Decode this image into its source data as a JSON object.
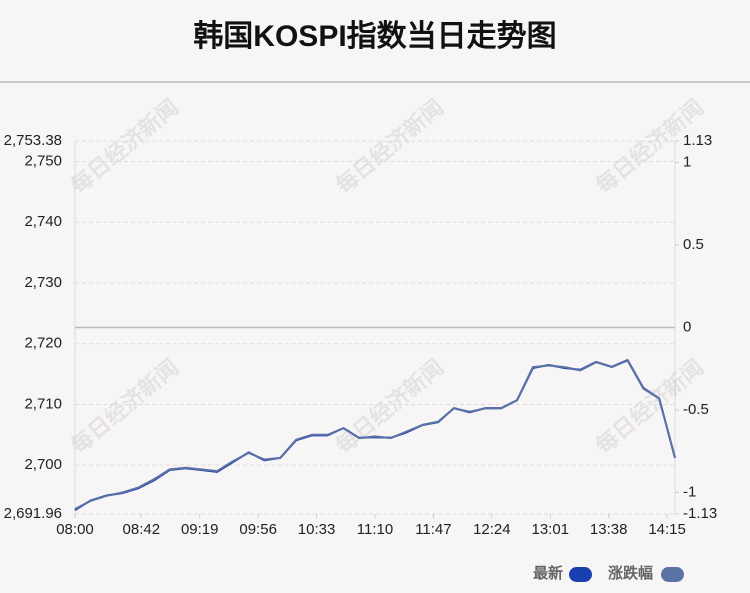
{
  "chart_data": {
    "type": "line",
    "title": "韩国KOSPI指数当日走势图",
    "watermark": "每日经济新闻",
    "x": [
      "08:00",
      "08:10",
      "08:20",
      "08:30",
      "08:40",
      "08:50",
      "09:00",
      "09:10",
      "09:20",
      "09:30",
      "09:40",
      "09:50",
      "10:00",
      "10:10",
      "10:20",
      "10:30",
      "10:40",
      "10:50",
      "11:00",
      "11:10",
      "11:20",
      "11:30",
      "11:40",
      "11:50",
      "12:00",
      "12:10",
      "12:20",
      "12:30",
      "12:40",
      "12:50",
      "13:00",
      "13:10",
      "13:20",
      "13:30",
      "13:40",
      "13:50",
      "14:00",
      "14:10",
      "14:20"
    ],
    "xlim": [
      "08:00",
      "14:20"
    ],
    "xticks": [
      "08:00",
      "08:42",
      "09:19",
      "09:56",
      "10:33",
      "11:10",
      "11:47",
      "12:24",
      "13:01",
      "13:38",
      "14:15"
    ],
    "series": [
      {
        "name": "最新",
        "color": "#1a3fb0",
        "values": [
          2692.6,
          2694.2,
          2695.0,
          2695.4,
          2696.2,
          2697.5,
          2699.2,
          2699.5,
          2699.2,
          2698.9,
          2700.5,
          2702.1,
          2700.8,
          2701.2,
          2704.1,
          2704.9,
          2704.9,
          2706.1,
          2704.5,
          2704.6,
          2704.5,
          2705.4,
          2706.6,
          2707.1,
          2709.4,
          2708.7,
          2709.4,
          2709.4,
          2710.7,
          2716.0,
          2716.5,
          2716.0,
          2715.7,
          2717.0,
          2716.2,
          2717.3,
          2712.7,
          2711.0,
          2701.2
        ]
      },
      {
        "name": "涨跌幅",
        "color": "#5a72a4",
        "axis": "y2",
        "values": [
          -1.1,
          -1.05,
          -1.02,
          -1.0,
          -0.97,
          -0.92,
          -0.86,
          -0.85,
          -0.86,
          -0.87,
          -0.81,
          -0.76,
          -0.8,
          -0.79,
          -0.68,
          -0.65,
          -0.65,
          -0.61,
          -0.67,
          -0.66,
          -0.67,
          -0.63,
          -0.59,
          -0.57,
          -0.49,
          -0.51,
          -0.49,
          -0.49,
          -0.44,
          -0.24,
          -0.23,
          -0.24,
          -0.26,
          -0.21,
          -0.24,
          -0.2,
          -0.37,
          -0.43,
          -0.79
        ]
      }
    ],
    "ylim": [
      2691.96,
      2753.38
    ],
    "yticks": [
      {
        "value": 2691.96,
        "label": "2,691.96"
      },
      {
        "value": 2700,
        "label": "2,700"
      },
      {
        "value": 2710,
        "label": "2,710"
      },
      {
        "value": 2720,
        "label": "2,720"
      },
      {
        "value": 2730,
        "label": "2,730"
      },
      {
        "value": 2740,
        "label": "2,740"
      },
      {
        "value": 2750,
        "label": "2,750"
      },
      {
        "value": 2753.38,
        "label": "2,753.38"
      }
    ],
    "y2lim": [
      -1.13,
      1.13
    ],
    "y2ticks": [
      -1.13,
      -1,
      -0.5,
      0,
      0.5,
      1,
      1.13
    ],
    "grid": true
  }
}
